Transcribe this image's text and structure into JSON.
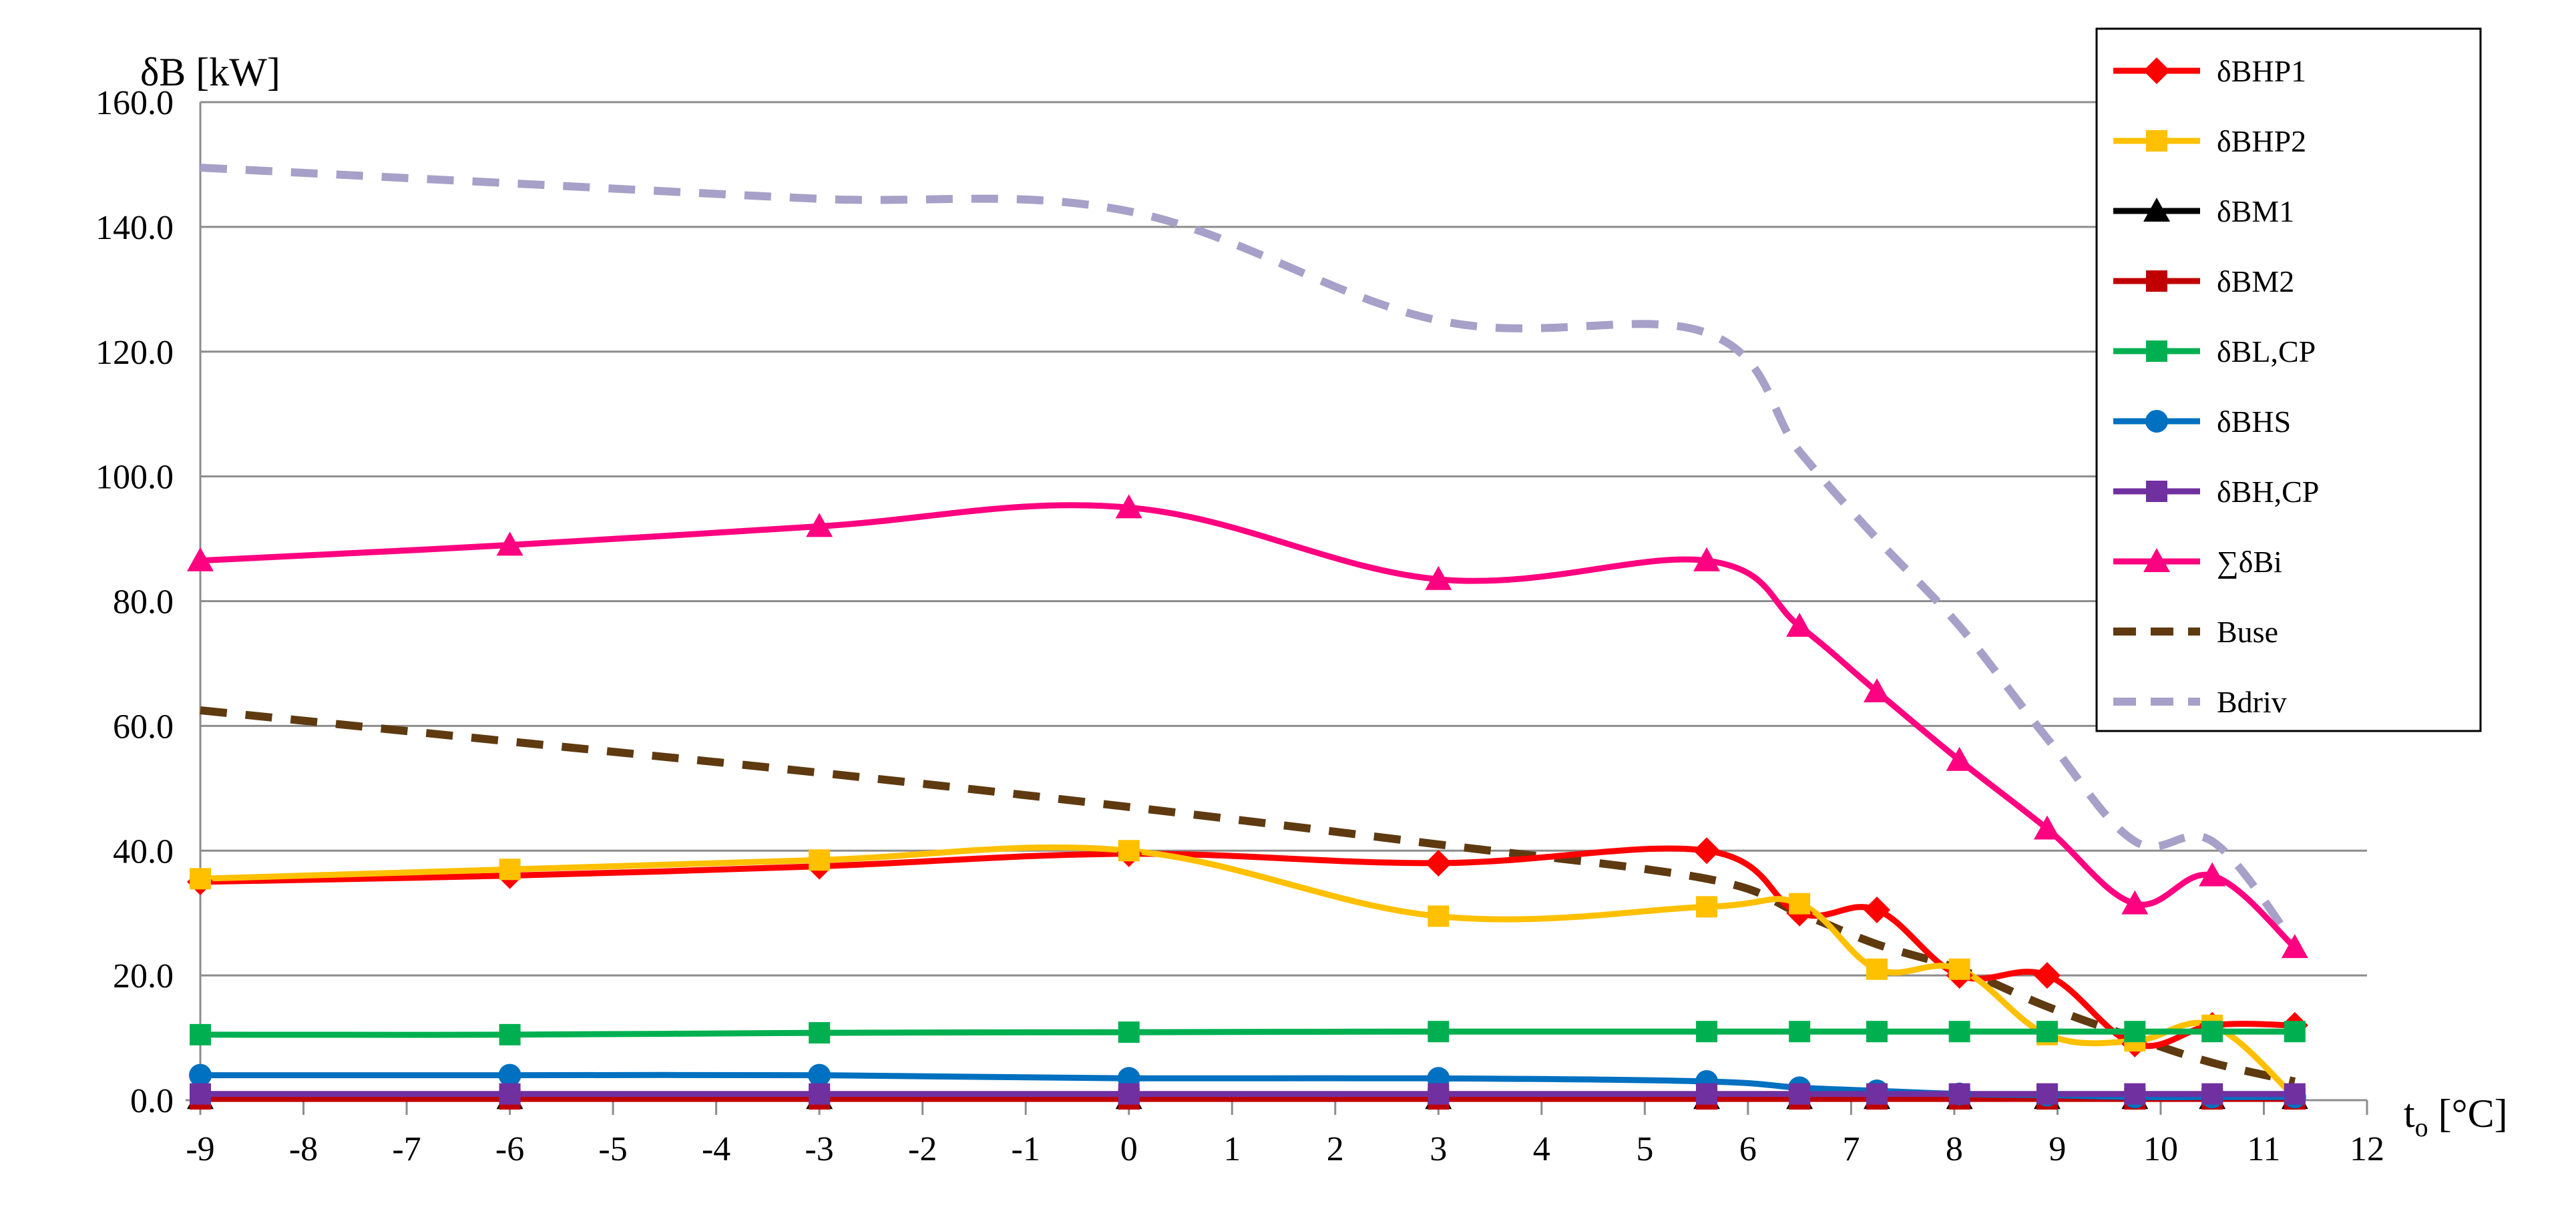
{
  "chart_data": {
    "type": "line",
    "ylabel": "δB [kW]",
    "xlabel_main": "t",
    "xlabel_sub": "o",
    "xlabel_unit": " [°C]",
    "xlim": [
      -9,
      12
    ],
    "ylim": [
      0,
      160
    ],
    "x_ticks": [
      -9,
      -8,
      -7,
      -6,
      -5,
      -4,
      -3,
      -2,
      -1,
      0,
      1,
      2,
      3,
      4,
      5,
      6,
      7,
      8,
      9,
      10,
      11,
      12
    ],
    "y_ticks": [
      "0.0",
      "20.0",
      "40.0",
      "60.0",
      "80.0",
      "100.0",
      "120.0",
      "140.0",
      "160.0"
    ],
    "grid": "horizontal",
    "legend_position": "top-right",
    "series": [
      {
        "name": "δBHP1",
        "color": "#ff0000",
        "marker": "diamond",
        "dash": "solid",
        "x": [
          -9,
          -6,
          -3,
          0,
          3,
          5.6,
          6.5,
          7.25,
          8.05,
          8.9,
          9.75,
          10.5,
          11.3
        ],
        "y": [
          35,
          36,
          37.5,
          39.5,
          38,
          40,
          30,
          30.5,
          20,
          20,
          9,
          12,
          12
        ]
      },
      {
        "name": "δBHP2",
        "color": "#ffc000",
        "marker": "square",
        "dash": "solid",
        "x": [
          -9,
          -6,
          -3,
          0,
          3,
          5.6,
          6.5,
          7.25,
          8.05,
          8.9,
          9.75,
          10.5,
          11.3
        ],
        "y": [
          35.5,
          37,
          38.5,
          40,
          29.5,
          31,
          31.5,
          21,
          21,
          10.5,
          9.5,
          12,
          0.5
        ]
      },
      {
        "name": "δBM1",
        "color": "#000000",
        "marker": "triangle",
        "dash": "solid",
        "x": [
          -9,
          -6,
          -3,
          0,
          3,
          5.6,
          6.5,
          7.25,
          8.05,
          8.9,
          9.75,
          10.5,
          11.3
        ],
        "y": [
          0.3,
          0.3,
          0.3,
          0.3,
          0.3,
          0.3,
          0.3,
          0.3,
          0.3,
          0.3,
          0.3,
          0.3,
          0.3
        ]
      },
      {
        "name": "δBM2",
        "color": "#c00000",
        "marker": "square",
        "dash": "solid",
        "x": [
          -9,
          -6,
          -3,
          0,
          3,
          5.6,
          6.5,
          7.25,
          8.05,
          8.9,
          9.75,
          10.5,
          11.3
        ],
        "y": [
          0.2,
          0.2,
          0.2,
          0.2,
          0.2,
          0.2,
          0.2,
          0.2,
          0.2,
          0.2,
          0.2,
          0.2,
          0.2
        ]
      },
      {
        "name": "δBL,CP",
        "color": "#00b050",
        "marker": "square",
        "dash": "solid",
        "x": [
          -9,
          -6,
          -3,
          0,
          3,
          5.6,
          6.5,
          7.25,
          8.05,
          8.9,
          9.75,
          10.5,
          11.3
        ],
        "y": [
          10.5,
          10.5,
          10.8,
          10.9,
          11,
          11,
          11,
          11,
          11,
          11,
          11,
          11,
          11
        ]
      },
      {
        "name": "δBHS",
        "color": "#0070c0",
        "marker": "circle",
        "dash": "solid",
        "x": [
          -9,
          -6,
          -3,
          0,
          3,
          5.6,
          6.5,
          7.25,
          8.05,
          8.9,
          9.75,
          10.5,
          11.3
        ],
        "y": [
          4,
          4,
          4,
          3.5,
          3.5,
          3,
          2,
          1.5,
          1,
          0.8,
          0.5,
          0.5,
          0.5
        ]
      },
      {
        "name": "δBH,CP",
        "color": "#7030a0",
        "marker": "square",
        "dash": "solid",
        "x": [
          -9,
          -6,
          -3,
          0,
          3,
          5.6,
          6.5,
          7.25,
          8.05,
          8.9,
          9.75,
          10.5,
          11.3
        ],
        "y": [
          1,
          1,
          1,
          1,
          1,
          1,
          1,
          1,
          1,
          1,
          1,
          1,
          1
        ]
      },
      {
        "name": "∑δBi",
        "color": "#ff0080",
        "marker": "triangle",
        "dash": "solid",
        "x": [
          -9,
          -6,
          -3,
          0,
          3,
          5.6,
          6.5,
          7.25,
          8.05,
          8.9,
          9.75,
          10.5,
          11.3
        ],
        "y": [
          86.5,
          89,
          92,
          95,
          83.5,
          86.5,
          76,
          65.5,
          54.5,
          43.5,
          31.5,
          36,
          24.5
        ]
      },
      {
        "name": "Buse",
        "color": "#5f3a10",
        "marker": "none",
        "dash": "dashed",
        "x": [
          -9,
          -6,
          -3,
          0,
          3,
          5.6,
          6.5,
          7.25,
          8.05,
          8.9,
          9.75,
          10.5,
          11.3
        ],
        "y": [
          62.5,
          57.5,
          52.5,
          47,
          41,
          35.5,
          30,
          25,
          21,
          15,
          10,
          6,
          3
        ]
      },
      {
        "name": "Bdriv",
        "color": "#a7a0c8",
        "marker": "none",
        "dash": "dashed",
        "x": [
          -9,
          -6,
          -3,
          0,
          3,
          5.6,
          6.5,
          7.25,
          8.05,
          8.9,
          9.75,
          10.5,
          11.3
        ],
        "y": [
          149.5,
          147,
          144.5,
          142.5,
          125,
          123,
          104,
          90,
          76,
          58,
          41.5,
          41.5,
          25
        ]
      }
    ]
  }
}
